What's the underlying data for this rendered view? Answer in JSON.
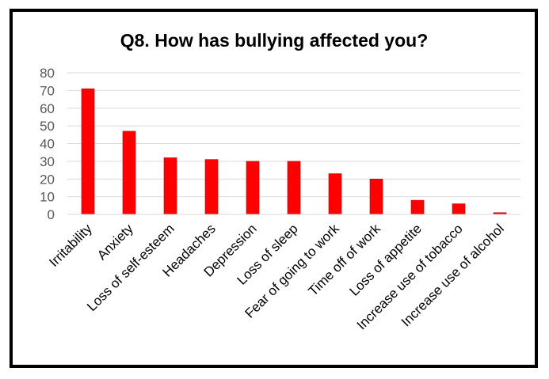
{
  "chart_data": {
    "type": "bar",
    "title": "Q8. How has bullying affected you?",
    "categories": [
      "Irritability",
      "Anxiety",
      "Loss of self-esteem",
      "Headaches",
      "Depression",
      "Loss of sleep",
      "Fear of going to work",
      "Time off of work",
      "Loss of appetite",
      "Increase use of tobacco",
      "Increase use of alcohol"
    ],
    "values": [
      71,
      47,
      32,
      31,
      30,
      30,
      23,
      20,
      8,
      6,
      1
    ],
    "ylim": [
      0,
      80
    ],
    "yticks": [
      0,
      10,
      20,
      30,
      40,
      50,
      60,
      70,
      80
    ],
    "grid": true,
    "legend": "none",
    "colors": {
      "bar": "#ff0000",
      "bar_edge": "#c00000",
      "grid": "#d9d9d9",
      "axis_text": "#595959"
    }
  }
}
